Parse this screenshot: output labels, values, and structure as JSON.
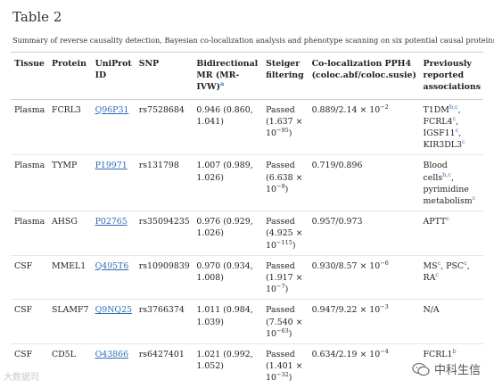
{
  "title": "Table 2",
  "caption": "Summary of reverse causality detection, Bayesian co-localization analysis and phenotype scanning on six potential causal proteins",
  "headers": {
    "tissue": "Tissue",
    "protein": "Protein",
    "uniprot": "UniProt ID",
    "snp": "SNP",
    "mr": "Bidirectional MR (MR-IVW)",
    "mr_sup": "a",
    "steiger": "Steiger filtering",
    "coloc": "Co-localization PPH4 (coloc.abf/coloc.susie)",
    "prev": "Previously reported associations"
  },
  "rows": [
    {
      "tissue": "Plasma",
      "protein": "FCRL3",
      "uniprot": "Q96P31",
      "snp": "rs7528684",
      "mr": "0.946 (0.860, 1.041)",
      "steiger": "Passed (1.637 × 10",
      "steiger_exp": "−95",
      "coloc": "0.889/2.14 × 10",
      "coloc_exp": "−2",
      "prev": [
        {
          "t": "T1DM",
          "s": "b,c"
        },
        {
          "t": "FCRL4",
          "s": "c"
        },
        {
          "t": "IGSF11",
          "s": "c"
        },
        {
          "t": "KIR3DL3",
          "s": "c"
        }
      ]
    },
    {
      "tissue": "Plasma",
      "protein": "TYMP",
      "uniprot": "P19971",
      "snp": "rs131798",
      "mr": "1.007 (0.989, 1.026)",
      "steiger": "Passed (6.638 × 10",
      "steiger_exp": "−9",
      "coloc": "0.719/0.896",
      "coloc_exp": "",
      "prev": [
        {
          "t": "Blood cells",
          "s": "b,c"
        },
        {
          "t": "pyrimidine metabolism",
          "s": "c"
        }
      ]
    },
    {
      "tissue": "Plasma",
      "protein": "AHSG",
      "uniprot": "P02765",
      "snp": "rs35094235",
      "mr": "0.976 (0.929, 1.026)",
      "steiger": "Passed (4.925 × 10",
      "steiger_exp": "−115",
      "coloc": "0.957/0.973",
      "coloc_exp": "",
      "prev": [
        {
          "t": "APTT",
          "s": "c"
        }
      ]
    },
    {
      "tissue": "CSF",
      "protein": "MMEL1",
      "uniprot": "Q495T6",
      "snp": "rs10909839",
      "mr": "0.970 (0.934, 1.008)",
      "steiger": "Passed (1.917 × 10",
      "steiger_exp": "−7",
      "coloc": "0.930/8.57 × 10",
      "coloc_exp": "−6",
      "prev": [
        {
          "t": "MS",
          "s": "c"
        },
        {
          "t": "PSC",
          "s": "c"
        },
        {
          "t": "RA",
          "s": "c"
        }
      ]
    },
    {
      "tissue": "CSF",
      "protein": "SLAMF7",
      "uniprot": "Q9NQ25",
      "snp": "rs3766374",
      "mr": "1.011 (0.984, 1.039)",
      "steiger": "Passed (7.540 × 10",
      "steiger_exp": "−63",
      "coloc": "0.947/9.22 × 10",
      "coloc_exp": "−3",
      "prev": [
        {
          "t": "N/A",
          "s": ""
        }
      ]
    },
    {
      "tissue": "CSF",
      "protein": "CD5L",
      "uniprot": "O43866",
      "snp": "rs6427401",
      "mr": "1.021 (0.992, 1.052)",
      "steiger": "Passed (1.401 × 10",
      "steiger_exp": "−32",
      "coloc": "0.634/2.19 × 10",
      "coloc_exp": "−4",
      "prev": [
        {
          "t": "FCRL1",
          "s": "b"
        }
      ]
    }
  ],
  "watermark_left": "大数据司",
  "watermark_right": "中科生信",
  "colors": {
    "link": "#2a6cb7",
    "rule": "#cfcfcf"
  }
}
